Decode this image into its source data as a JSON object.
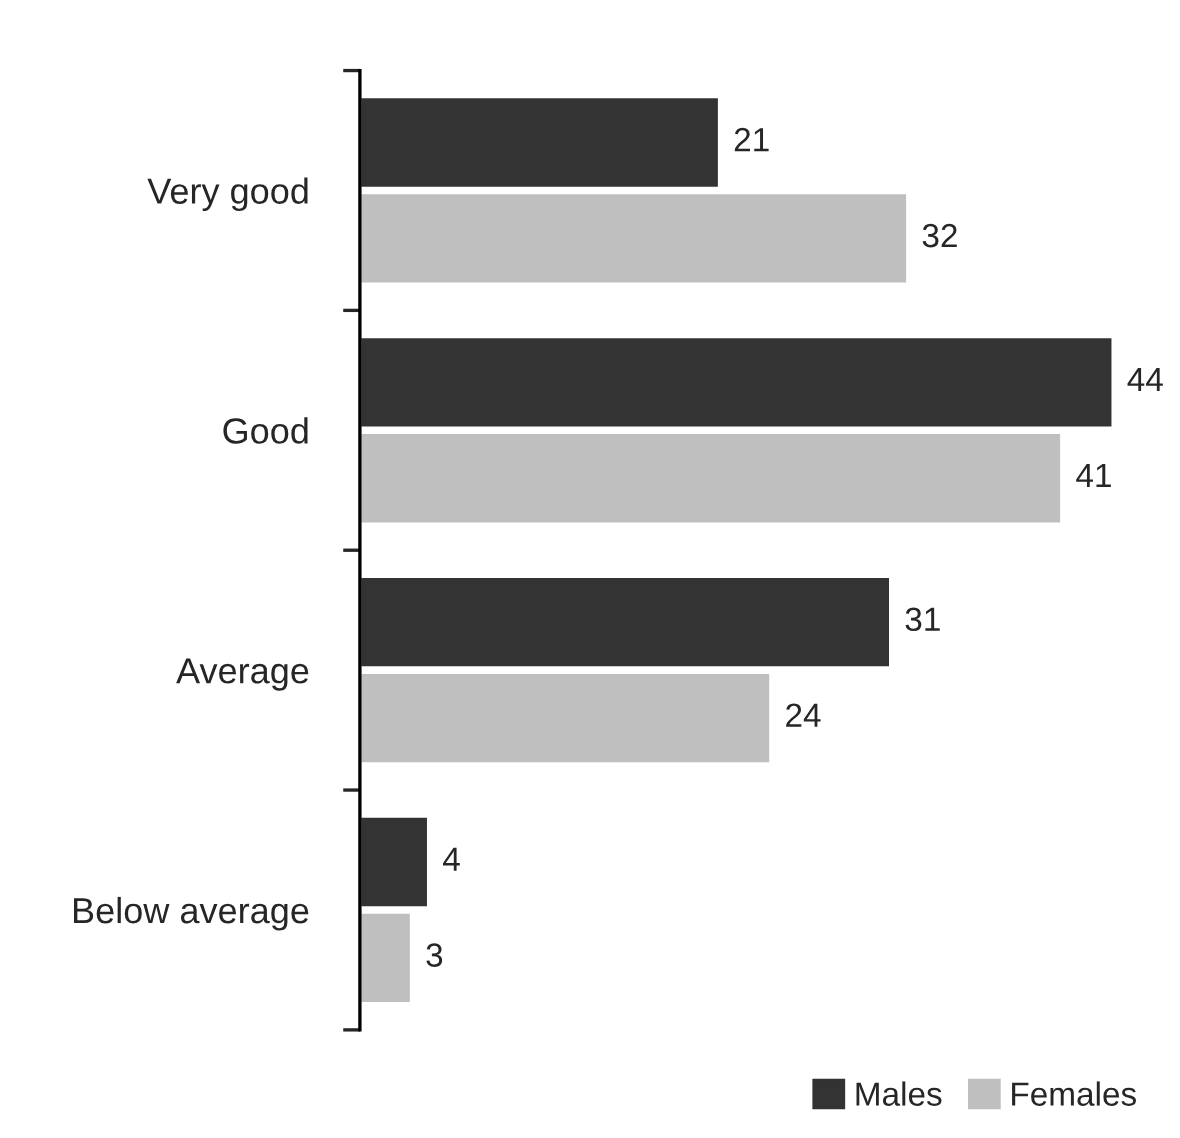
{
  "chart_data": {
    "type": "bar",
    "orientation": "horizontal",
    "categories": [
      "Very good",
      "Good",
      "Average",
      "Below average"
    ],
    "series": [
      {
        "name": "Males",
        "color": "#333333",
        "values": [
          21,
          44,
          31,
          4
        ]
      },
      {
        "name": "Females",
        "color": "#bfbfbf",
        "values": [
          32,
          41,
          24,
          3
        ]
      }
    ],
    "data_labels": true,
    "legend": "bottom right",
    "grid": false
  }
}
